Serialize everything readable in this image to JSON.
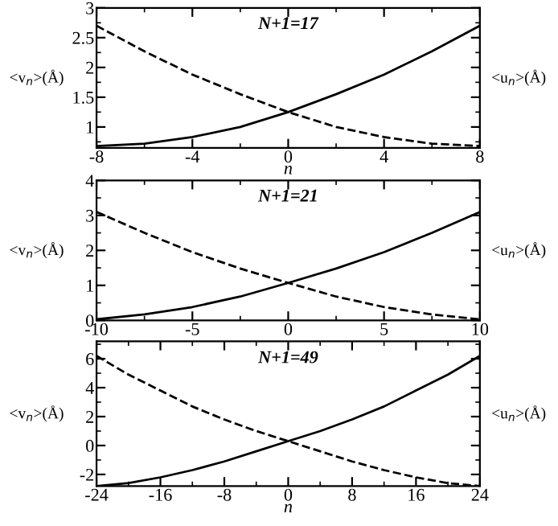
{
  "chart_data": [
    {
      "type": "line",
      "annotations": [
        "N+1=17"
      ],
      "xlabel": "n",
      "ylabel": "<v$_{n}$>(Å)",
      "y2label": "<u$_{n}$>(Å)",
      "x": [
        -8,
        -6,
        -4,
        -2,
        0,
        2,
        4,
        6,
        8
      ],
      "xlim": [
        -8,
        8
      ],
      "xticks": [
        -8,
        -4,
        0,
        4,
        8
      ],
      "ylim": [
        0.65,
        3
      ],
      "yticks": [
        1,
        1.5,
        2,
        2.5,
        3
      ],
      "grid": false,
      "legend": false,
      "series": [
        {
          "color": "#000000",
          "line_style": "solid",
          "values": [
            0.68,
            0.72,
            0.83,
            1.0,
            1.25,
            1.55,
            1.88,
            2.27,
            2.7
          ]
        },
        {
          "color": "#000000",
          "line_style": "dashed",
          "values": [
            2.7,
            2.27,
            1.88,
            1.55,
            1.25,
            1.0,
            0.83,
            0.72,
            0.68
          ]
        }
      ]
    },
    {
      "type": "line",
      "annotations": [
        "N+1=21"
      ],
      "ylabel": "<v$_{n}$>(Å)",
      "y2label": "<u$_{n}$>(Å)",
      "x": [
        -10,
        -7.5,
        -5,
        -2.5,
        0,
        2.5,
        5,
        7.5,
        10
      ],
      "xlim": [
        -10,
        10
      ],
      "xticks": [
        -10,
        -5,
        0,
        5,
        10
      ],
      "ylim": [
        0,
        4
      ],
      "yticks": [
        0,
        1,
        2,
        3,
        4
      ],
      "grid": false,
      "legend": false,
      "series": [
        {
          "color": "#000000",
          "line_style": "solid",
          "values": [
            0.03,
            0.17,
            0.38,
            0.68,
            1.07,
            1.48,
            1.95,
            2.5,
            3.1
          ]
        },
        {
          "color": "#000000",
          "line_style": "dashed",
          "values": [
            3.1,
            2.5,
            1.95,
            1.48,
            1.07,
            0.68,
            0.38,
            0.17,
            0.03
          ]
        }
      ]
    },
    {
      "type": "line",
      "annotations": [
        "N+1=49"
      ],
      "xlabel": "n",
      "ylabel": "<v$_{n}$>(Å)",
      "y2label": "<u$_{n}$>(Å)",
      "x": [
        -24,
        -20,
        -16,
        -12,
        -8,
        -4,
        0,
        4,
        8,
        12,
        16,
        20,
        24
      ],
      "xlim": [
        -24,
        24
      ],
      "xticks": [
        -24,
        -16,
        -8,
        0,
        8,
        16,
        24
      ],
      "ylim": [
        -2.8,
        7.2
      ],
      "yticks": [
        -2,
        0,
        2,
        4,
        6
      ],
      "grid": false,
      "legend": false,
      "series": [
        {
          "color": "#000000",
          "line_style": "solid",
          "values": [
            -2.8,
            -2.6,
            -2.2,
            -1.7,
            -1.1,
            -0.4,
            0.3,
            1.0,
            1.8,
            2.7,
            3.8,
            4.9,
            6.2
          ]
        },
        {
          "color": "#000000",
          "line_style": "dashed",
          "values": [
            6.2,
            4.9,
            3.8,
            2.7,
            1.8,
            1.0,
            0.3,
            -0.4,
            -1.1,
            -1.7,
            -2.2,
            -2.6,
            -2.8
          ]
        }
      ]
    }
  ]
}
